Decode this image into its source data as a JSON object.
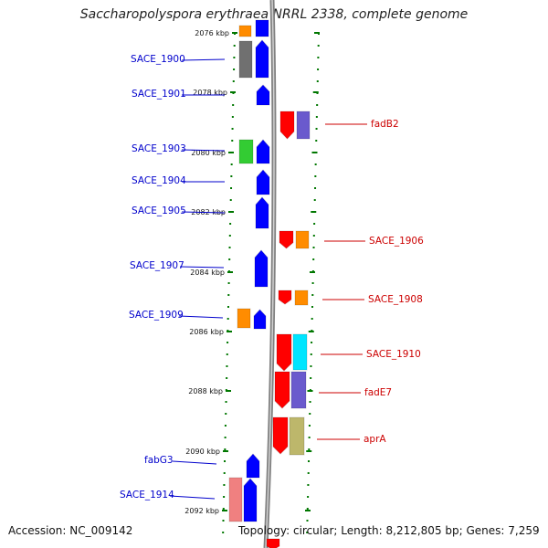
{
  "title": "Saccharopolyspora erythraea NRRL 2338, complete genome",
  "footer": {
    "accession": "Accession: NC_009142",
    "topology": "Topology: circular; Length: 8,212,805 bp; Genes: 7,259"
  },
  "scale_ticks": [
    "2076 kbp",
    "2078 kbp",
    "2080 kbp",
    "2082 kbp",
    "2084 kbp",
    "2086 kbp",
    "2088 kbp",
    "2090 kbp",
    "2092 kbp"
  ],
  "left_genes": [
    {
      "label": "SACE_1900",
      "color": "#0000cc"
    },
    {
      "label": "SACE_1901",
      "color": "#0000cc"
    },
    {
      "label": "SACE_1903",
      "color": "#0000cc"
    },
    {
      "label": "SACE_1904",
      "color": "#0000cc"
    },
    {
      "label": "SACE_1905",
      "color": "#0000cc"
    },
    {
      "label": "SACE_1907",
      "color": "#0000cc"
    },
    {
      "label": "SACE_1909",
      "color": "#0000cc"
    },
    {
      "label": "fabG3",
      "color": "#0000cc"
    },
    {
      "label": "SACE_1914",
      "color": "#0000cc"
    }
  ],
  "right_genes": [
    {
      "label": "fadB2",
      "color": "#cc0000"
    },
    {
      "label": "SACE_1906",
      "color": "#cc0000"
    },
    {
      "label": "SACE_1908",
      "color": "#cc0000"
    },
    {
      "label": "SACE_1910",
      "color": "#cc0000"
    },
    {
      "label": "fadE7",
      "color": "#cc0000"
    },
    {
      "label": "aprA",
      "color": "#cc0000"
    }
  ],
  "feature_colors": {
    "forward_cds": "#0000ff",
    "reverse_cds": "#ff0000",
    "orange": "#ff8c00",
    "gray": "#707070",
    "green": "#33cc33",
    "purple": "#6a5acd",
    "cyan": "#00e5ff",
    "khaki": "#bdb76b",
    "pink": "#f08080",
    "backbone": "#808080",
    "tick_green": "#007700"
  }
}
